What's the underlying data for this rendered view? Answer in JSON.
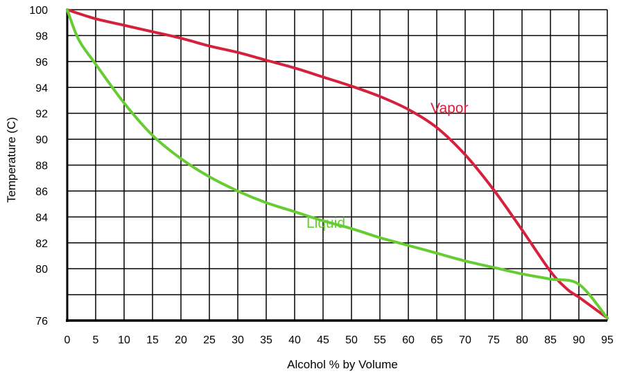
{
  "chart_data": {
    "type": "line",
    "title": "",
    "xlabel": "Alcohol % by Volume",
    "ylabel": "Temperature (C)",
    "xlim": [
      0,
      95
    ],
    "x_ticks": [
      0,
      5,
      10,
      15,
      20,
      25,
      30,
      35,
      40,
      45,
      50,
      55,
      60,
      65,
      70,
      75,
      80,
      85,
      90,
      95
    ],
    "y_ticks": [
      76,
      78,
      80,
      82,
      84,
      86,
      88,
      90,
      92,
      94,
      96,
      98,
      100
    ],
    "y_tick_labels": [
      "76",
      "",
      "80",
      "82",
      "84",
      "86",
      "88",
      "90",
      "92",
      "94",
      "96",
      "98",
      "100"
    ],
    "grid": true,
    "legend": "inline labels",
    "series": [
      {
        "name": "Vapor",
        "color": "#d4213d",
        "x": [
          0,
          5,
          10,
          15,
          20,
          25,
          30,
          35,
          40,
          45,
          50,
          55,
          60,
          65,
          70,
          75,
          80,
          85,
          88,
          90,
          95
        ],
        "y": [
          100,
          99.3,
          98.8,
          98.3,
          97.8,
          97.2,
          96.7,
          96.1,
          95.5,
          94.8,
          94.1,
          93.3,
          92.3,
          90.9,
          88.8,
          86.1,
          83.0,
          79.8,
          78.4,
          77.8,
          76.2
        ]
      },
      {
        "name": "Liquid",
        "color": "#66cc33",
        "x": [
          0,
          2,
          5,
          10,
          15,
          20,
          25,
          30,
          35,
          40,
          45,
          50,
          55,
          60,
          65,
          70,
          75,
          80,
          85,
          90,
          95
        ],
        "y": [
          100,
          97.7,
          95.8,
          92.8,
          90.3,
          88.5,
          87.1,
          86.0,
          85.1,
          84.4,
          83.7,
          83.1,
          82.4,
          81.8,
          81.2,
          80.6,
          80.1,
          79.6,
          79.2,
          78.8,
          76.2
        ]
      }
    ]
  }
}
